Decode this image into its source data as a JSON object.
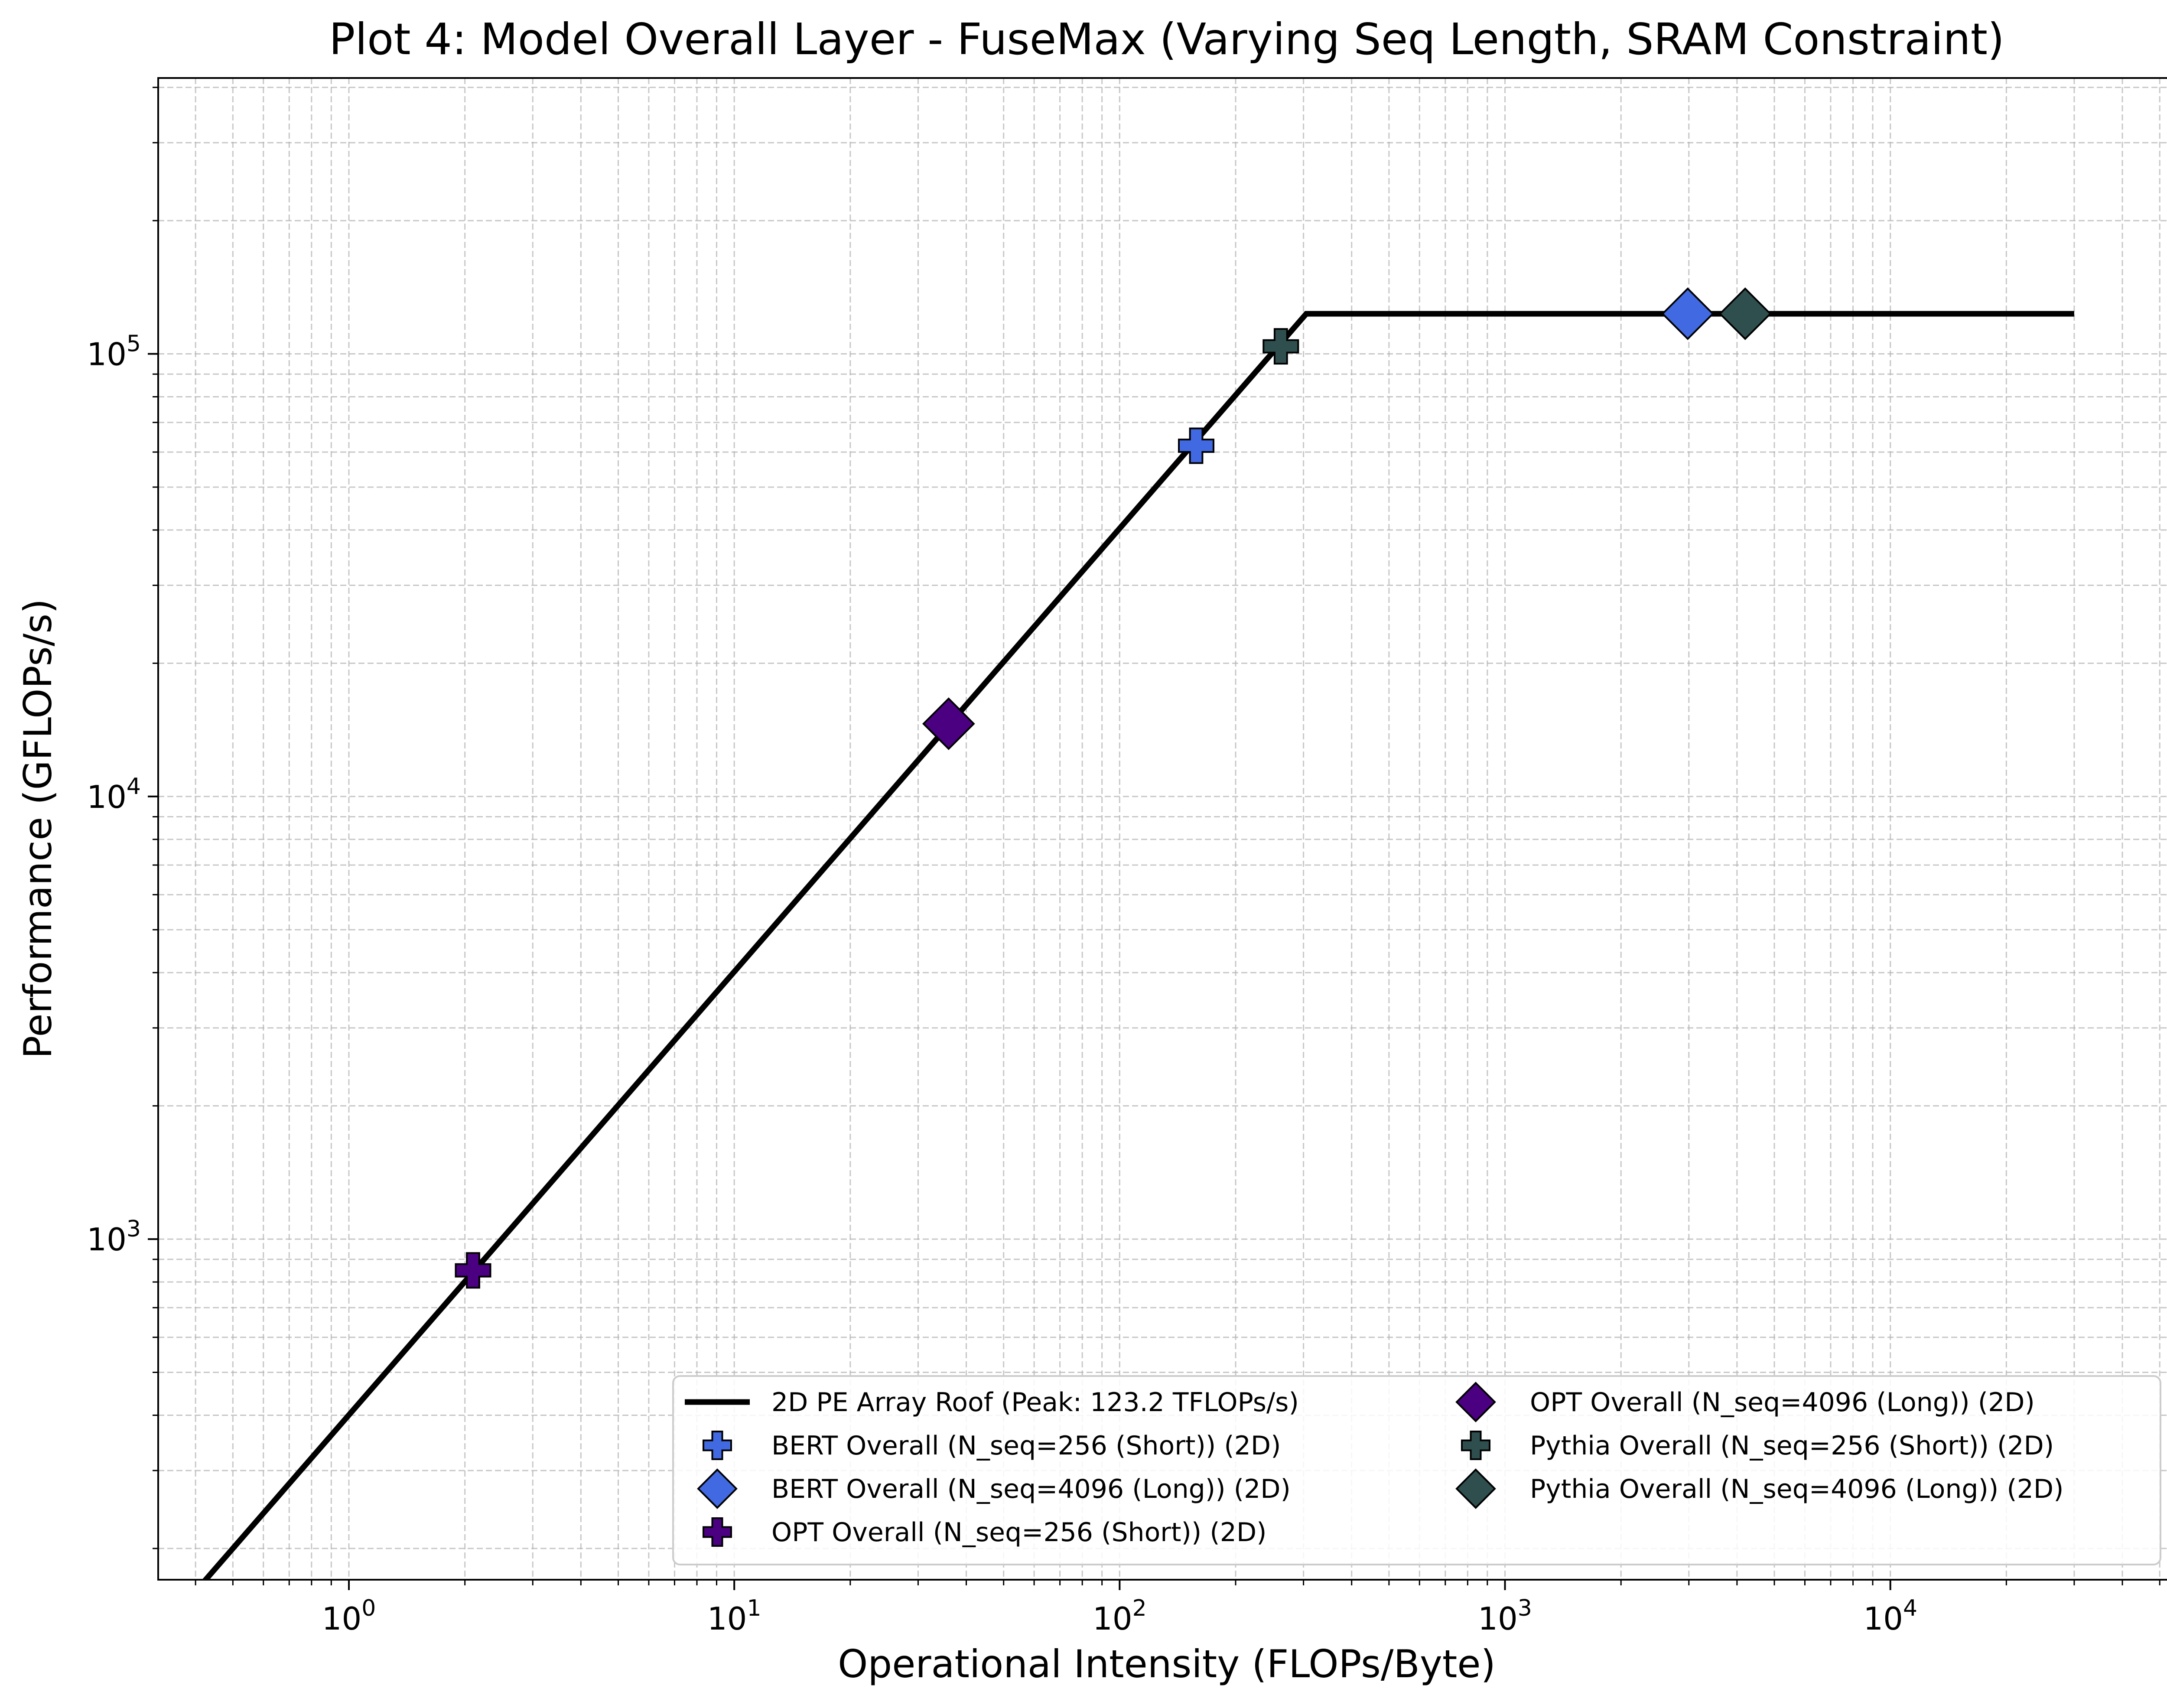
{
  "chart_data": {
    "type": "line",
    "title": "Plot 4: Model Overall Layer - FuseMax (Varying Seq Length, SRAM Constraint)",
    "xlabel": "Operational Intensity (FLOPs/Byte)",
    "ylabel": "Performance (GFLOPs/s)",
    "xscale": "log",
    "yscale": "log",
    "xlim": [
      0.32,
      55000
    ],
    "ylim": [
      170,
      420000
    ],
    "grid": true,
    "legend_position": "lower-right",
    "legend_columns": 2,
    "x_ticks": [
      {
        "base": "10",
        "exp": "0",
        "value": 1
      },
      {
        "base": "10",
        "exp": "1",
        "value": 10
      },
      {
        "base": "10",
        "exp": "2",
        "value": 100
      },
      {
        "base": "10",
        "exp": "3",
        "value": 1000
      },
      {
        "base": "10",
        "exp": "4",
        "value": 10000
      }
    ],
    "y_ticks": [
      {
        "base": "10",
        "exp": "3",
        "value": 1000
      },
      {
        "base": "10",
        "exp": "4",
        "value": 10000
      },
      {
        "base": "10",
        "exp": "5",
        "value": 100000
      }
    ],
    "roofline": {
      "name": "2D PE Array Roof (Peak: 123.2 TFLOPs/s)",
      "color": "#000000",
      "points": [
        [
          0.42,
          168
        ],
        [
          305,
          123200
        ],
        [
          30000,
          123200
        ]
      ]
    },
    "series": [
      {
        "name": "BERT Overall (N_seq=256 (Short)) (2D)",
        "marker": "plus",
        "color": "#4169e1",
        "x": 158,
        "y": 62000
      },
      {
        "name": "BERT Overall (N_seq=4096 (Long)) (2D)",
        "marker": "diamond",
        "color": "#4169e1",
        "x": 2980,
        "y": 123200
      },
      {
        "name": "OPT Overall (N_seq=256 (Short)) (2D)",
        "marker": "plus",
        "color": "#4b0082",
        "x": 2.1,
        "y": 850
      },
      {
        "name": "OPT Overall (N_seq=4096 (Long)) (2D)",
        "marker": "diamond",
        "color": "#4b0082",
        "x": 36,
        "y": 14600
      },
      {
        "name": "Pythia Overall (N_seq=256 (Short)) (2D)",
        "marker": "plus",
        "color": "#2f4f4f",
        "x": 262,
        "y": 104000
      },
      {
        "name": "Pythia Overall (N_seq=4096 (Long)) (2D)",
        "marker": "diamond",
        "color": "#2f4f4f",
        "x": 4200,
        "y": 123200
      }
    ]
  }
}
